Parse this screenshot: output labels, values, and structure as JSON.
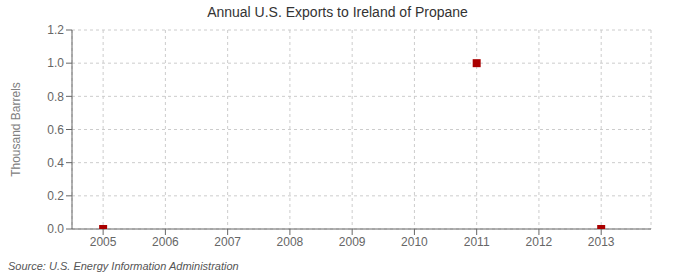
{
  "chart_data": {
    "type": "scatter",
    "title": "Annual U.S. Exports to Ireland of Propane",
    "ylabel": "Thousand Barrels",
    "source": "Source: U.S. Energy Information Administration",
    "x": [
      2005,
      2011,
      2013
    ],
    "values": [
      0.0,
      1.0,
      0.0
    ],
    "xlim": [
      2004.5,
      2013.8
    ],
    "ylim": [
      0.0,
      1.2
    ],
    "xticks": [
      2005,
      2006,
      2007,
      2008,
      2009,
      2010,
      2011,
      2012,
      2013
    ],
    "yticks": [
      {
        "value": 0.0,
        "label": "0.0"
      },
      0.2,
      0.4,
      0.6,
      0.8,
      {
        "value": 1.0,
        "label": "1.0"
      },
      1.2
    ],
    "color": "#aa0000",
    "marker": "square",
    "grid": true
  }
}
